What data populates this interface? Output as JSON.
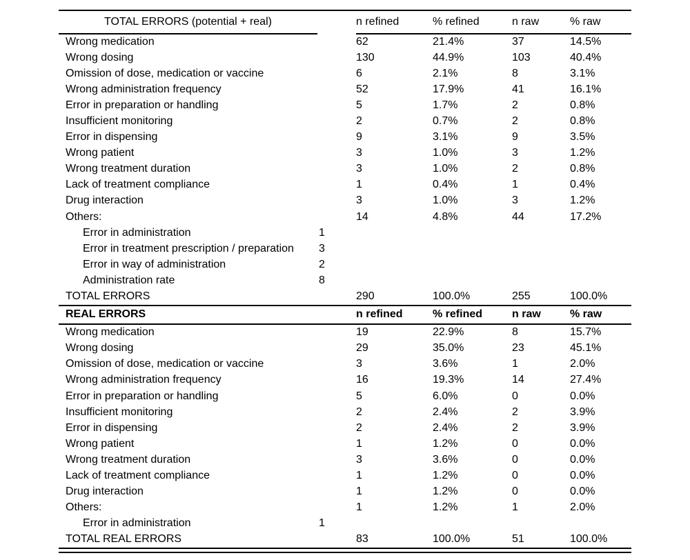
{
  "table": {
    "sections": [
      {
        "title": "TOTAL ERRORS (potential + real)",
        "columns": [
          "n refined",
          "% refined",
          "n raw",
          "% raw"
        ],
        "rows": [
          {
            "label": "Wrong medication",
            "n_refined": "62",
            "pct_refined": "21.4%",
            "n_raw": "37",
            "pct_raw": "14.5%"
          },
          {
            "label": "Wrong dosing",
            "n_refined": "130",
            "pct_refined": "44.9%",
            "n_raw": "103",
            "pct_raw": "40.4%"
          },
          {
            "label": "Omission of dose, medication or vaccine",
            "n_refined": "6",
            "pct_refined": "2.1%",
            "n_raw": "8",
            "pct_raw": "3.1%"
          },
          {
            "label": "Wrong administration frequency",
            "n_refined": "52",
            "pct_refined": "17.9%",
            "n_raw": "41",
            "pct_raw": "16.1%"
          },
          {
            "label": "Error in preparation or handling",
            "n_refined": "5",
            "pct_refined": "1.7%",
            "n_raw": "2",
            "pct_raw": "0.8%"
          },
          {
            "label": "Insufficient monitoring",
            "n_refined": "2",
            "pct_refined": "0.7%",
            "n_raw": "2",
            "pct_raw": "0.8%"
          },
          {
            "label": "Error in dispensing",
            "n_refined": "9",
            "pct_refined": "3.1%",
            "n_raw": "9",
            "pct_raw": "3.5%"
          },
          {
            "label": "Wrong patient",
            "n_refined": "3",
            "pct_refined": "1.0%",
            "n_raw": "3",
            "pct_raw": "1.2%"
          },
          {
            "label": "Wrong treatment duration",
            "n_refined": "3",
            "pct_refined": "1.0%",
            "n_raw": "2",
            "pct_raw": "0.8%"
          },
          {
            "label": "Lack of treatment compliance",
            "n_refined": "1",
            "pct_refined": "0.4%",
            "n_raw": "1",
            "pct_raw": "0.4%"
          },
          {
            "label": "Drug interaction",
            "n_refined": "3",
            "pct_refined": "1.0%",
            "n_raw": "3",
            "pct_raw": "1.2%"
          },
          {
            "label": "Others:",
            "n_refined": "14",
            "pct_refined": "4.8%",
            "n_raw": "44",
            "pct_raw": "17.2%"
          },
          {
            "label": "Error in administration",
            "indent": true,
            "subcount": "1"
          },
          {
            "label": "Error in treatment prescription / preparation",
            "indent": true,
            "subcount": "3"
          },
          {
            "label": "Error in way of administration",
            "indent": true,
            "subcount": "2"
          },
          {
            "label": "Administration rate",
            "indent": true,
            "subcount": "8"
          },
          {
            "label": "TOTAL ERRORS",
            "n_refined": "290",
            "pct_refined": "100.0%",
            "n_raw": "255",
            "pct_raw": "100.0%"
          }
        ]
      },
      {
        "title": "REAL ERRORS",
        "columns": [
          "n refined",
          "% refined",
          "n raw",
          "% raw"
        ],
        "rows": [
          {
            "label": "Wrong medication",
            "n_refined": "19",
            "pct_refined": "22.9%",
            "n_raw": "8",
            "pct_raw": "15.7%"
          },
          {
            "label": "Wrong dosing",
            "n_refined": "29",
            "pct_refined": "35.0%",
            "n_raw": "23",
            "pct_raw": "45.1%"
          },
          {
            "label": "Omission of dose, medication or vaccine",
            "n_refined": "3",
            "pct_refined": "3.6%",
            "n_raw": "1",
            "pct_raw": "2.0%"
          },
          {
            "label": "Wrong administration frequency",
            "n_refined": "16",
            "pct_refined": "19.3%",
            "n_raw": "14",
            "pct_raw": "27.4%"
          },
          {
            "label": "Error in preparation or handling",
            "n_refined": "5",
            "pct_refined": "6.0%",
            "n_raw": "0",
            "pct_raw": "0.0%"
          },
          {
            "label": "Insufficient monitoring",
            "n_refined": "2",
            "pct_refined": "2.4%",
            "n_raw": "2",
            "pct_raw": "3.9%"
          },
          {
            "label": "Error in dispensing",
            "n_refined": "2",
            "pct_refined": "2.4%",
            "n_raw": "2",
            "pct_raw": "3.9%"
          },
          {
            "label": "Wrong patient",
            "n_refined": "1",
            "pct_refined": "1.2%",
            "n_raw": "0",
            "pct_raw": "0.0%"
          },
          {
            "label": "Wrong treatment duration",
            "n_refined": "3",
            "pct_refined": "3.6%",
            "n_raw": "0",
            "pct_raw": "0.0%"
          },
          {
            "label": "Lack of treatment compliance",
            "n_refined": "1",
            "pct_refined": "1.2%",
            "n_raw": "0",
            "pct_raw": "0.0%"
          },
          {
            "label": "Drug interaction",
            "n_refined": "1",
            "pct_refined": "1.2%",
            "n_raw": "0",
            "pct_raw": "0.0%"
          },
          {
            "label": "Others:",
            "n_refined": "1",
            "pct_refined": "1.2%",
            "n_raw": "1",
            "pct_raw": "2.0%"
          },
          {
            "label": "Error in administration",
            "indent": true,
            "subcount": "1"
          },
          {
            "label": "TOTAL REAL ERRORS",
            "n_refined": "83",
            "pct_refined": "100.0%",
            "n_raw": "51",
            "pct_raw": "100.0%"
          }
        ]
      }
    ]
  }
}
